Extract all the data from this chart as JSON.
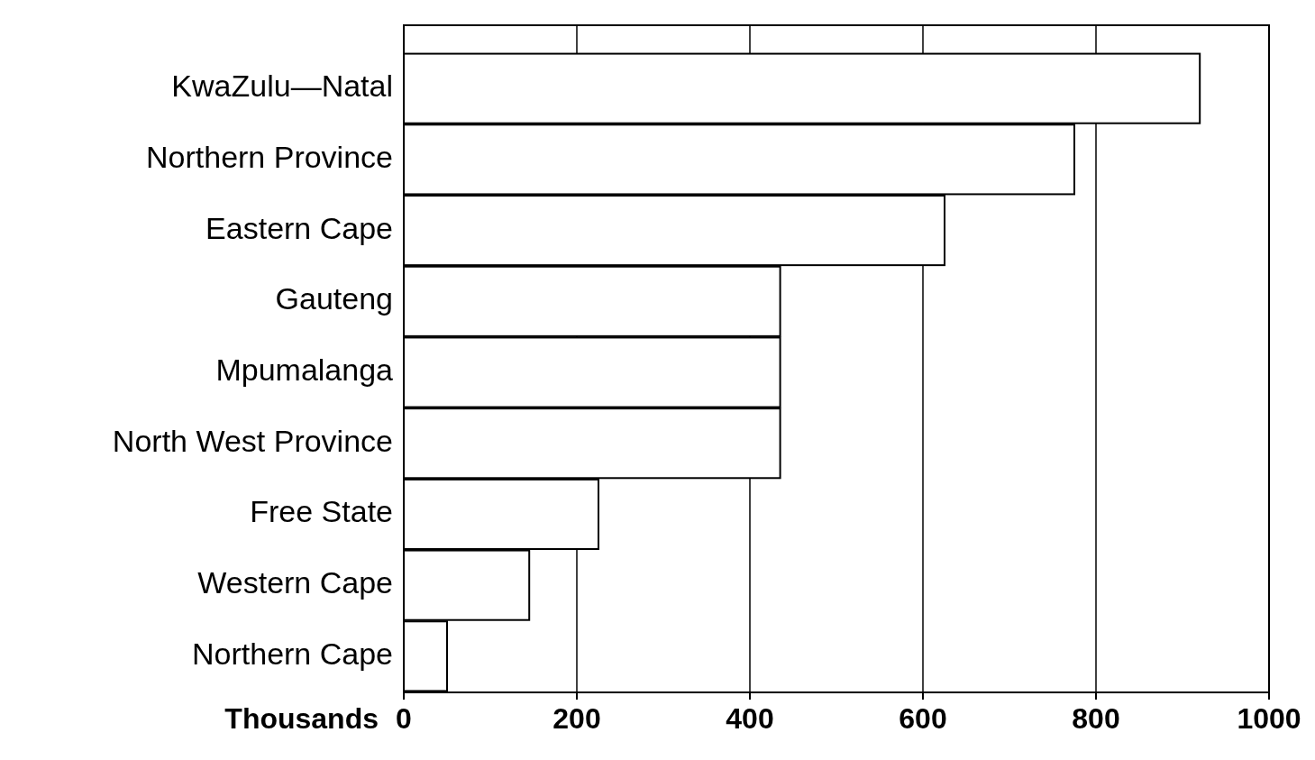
{
  "chart_data": {
    "type": "bar",
    "orientation": "horizontal",
    "categories": [
      "KwaZulu—Natal",
      "Northern Province",
      "Eastern Cape",
      "Gauteng",
      "Mpumalanga",
      "North West Province",
      "Free State",
      "Western Cape",
      "Northern Cape"
    ],
    "values": [
      920,
      775,
      625,
      435,
      435,
      435,
      225,
      145,
      50
    ],
    "color": "#ffffff",
    "xlabel": "Thousands",
    "xlim": [
      0,
      1000
    ],
    "xticks": [
      0,
      200,
      400,
      600,
      800,
      1000
    ],
    "grid": "x"
  }
}
